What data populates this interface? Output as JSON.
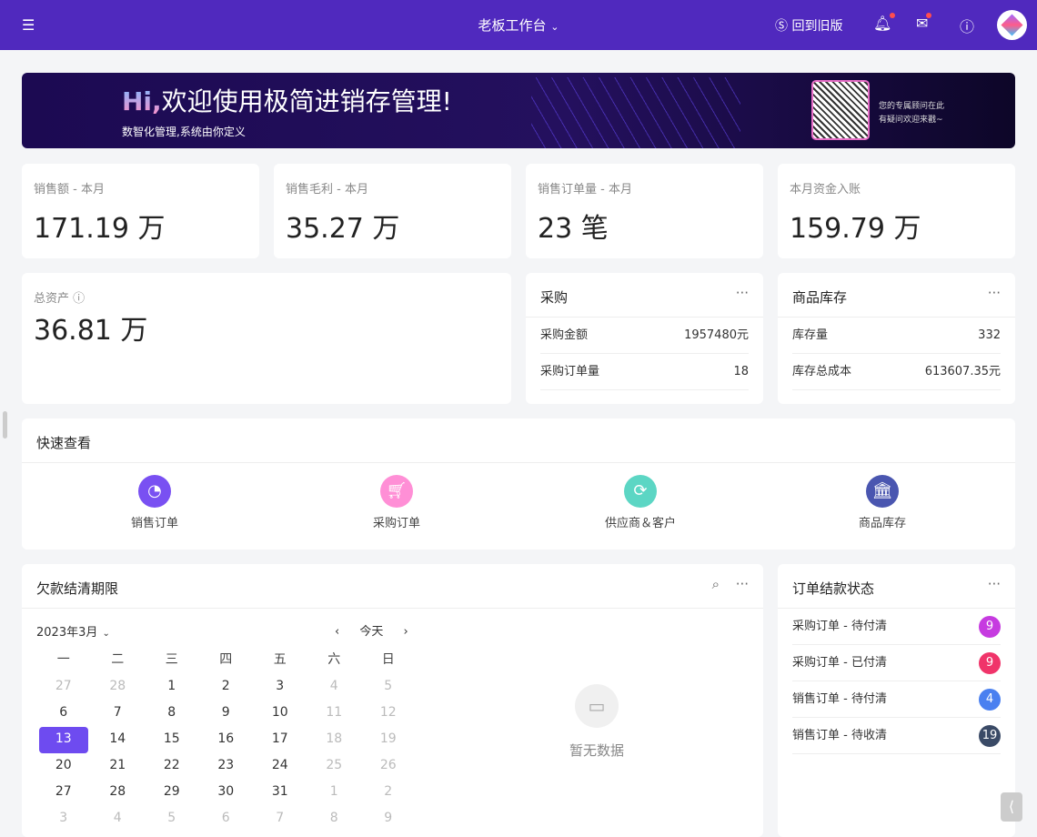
{
  "header": {
    "title": "老板工作台",
    "old_version": "回到旧版"
  },
  "banner": {
    "hi": "Hi,",
    "welcome": "欢迎使用极简进销存管理!",
    "subtitle": "数智化管理,系统由你定义",
    "qr_text1": "您的专属顾问在此",
    "qr_text2": "有疑问欢迎来戳~"
  },
  "stats": [
    {
      "label": "销售额 - 本月",
      "value": "171.19 万"
    },
    {
      "label": "销售毛利 - 本月",
      "value": "35.27 万"
    },
    {
      "label": "销售订单量 - 本月",
      "value": "23 笔"
    },
    {
      "label": "本月资金入账",
      "value": "159.79 万"
    }
  ],
  "assets": {
    "label": "总资产",
    "value": "36.81 万"
  },
  "purchase": {
    "title": "采购",
    "rows": [
      {
        "k": "采购金额",
        "v": "1957480元"
      },
      {
        "k": "采购订单量",
        "v": "18"
      }
    ]
  },
  "inventory": {
    "title": "商品库存",
    "rows": [
      {
        "k": "库存量",
        "v": "332"
      },
      {
        "k": "库存总成本",
        "v": "613607.35元"
      }
    ]
  },
  "quick": {
    "title": "快速查看",
    "items": [
      {
        "label": "销售订单",
        "color": "#7950f2"
      },
      {
        "label": "采购订单",
        "color": "#ff8fd6"
      },
      {
        "label": "供应商＆客户",
        "color": "#5cd6c4"
      },
      {
        "label": "商品库存",
        "color": "#4a56b0"
      }
    ]
  },
  "calendar": {
    "title": "欠款结清期限",
    "month": "2023年3月",
    "today": "今天",
    "weekdays": [
      "一",
      "二",
      "三",
      "四",
      "五",
      "六",
      "日"
    ],
    "days": [
      [
        "27",
        "28",
        "1",
        "2",
        "3",
        "4",
        "5"
      ],
      [
        "6",
        "7",
        "8",
        "9",
        "10",
        "11",
        "12"
      ],
      [
        "13",
        "14",
        "15",
        "16",
        "17",
        "18",
        "19"
      ],
      [
        "20",
        "21",
        "22",
        "23",
        "24",
        "25",
        "26"
      ],
      [
        "27",
        "28",
        "29",
        "30",
        "31",
        "1",
        "2"
      ],
      [
        "3",
        "4",
        "5",
        "6",
        "7",
        "8",
        "9"
      ]
    ],
    "empty": "暂无数据"
  },
  "order_status": {
    "title": "订单结款状态",
    "items": [
      {
        "label": "采购订单 - 待付清",
        "count": "9",
        "color": "#c63be0"
      },
      {
        "label": "采购订单 - 已付清",
        "count": "9",
        "color": "#f0346a"
      },
      {
        "label": "销售订单 - 待付清",
        "count": "4",
        "color": "#4a80f0"
      },
      {
        "label": "销售订单 - 待收清",
        "count": "19",
        "color": "#3a4a66"
      }
    ]
  }
}
